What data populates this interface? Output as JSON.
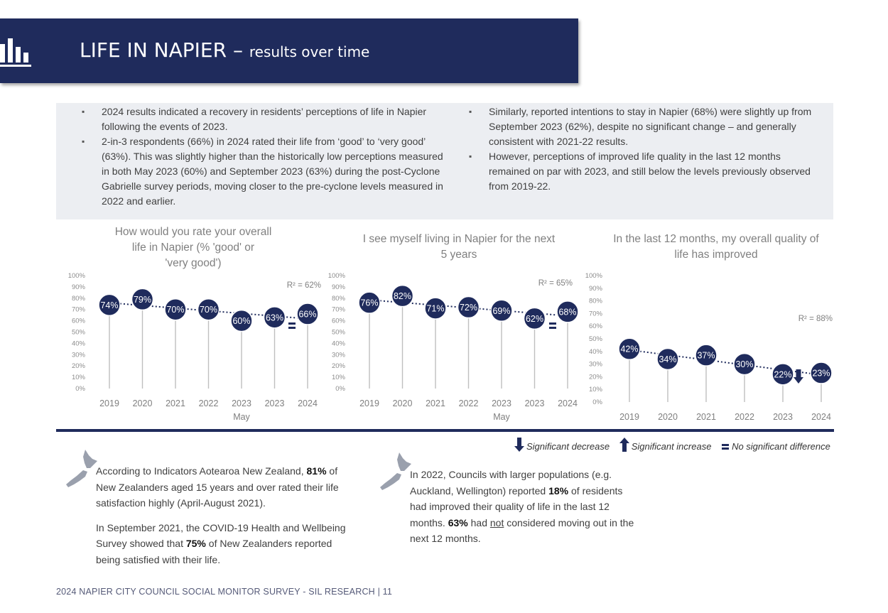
{
  "header": {
    "title": "LIFE IN NAPIER –",
    "subtitle": "results over time",
    "icon": "bar-chart-icon"
  },
  "summary": {
    "left": [
      "2024 results indicated a recovery in residents’ perceptions of life in Napier following the events of 2023.",
      "2-in-3 respondents (66%) in 2024 rated their life from ‘good’ to ‘very good’ (63%). This was slightly higher than the historically low perceptions measured in both May 2023 (60%) and September 2023 (63%) during the post-Cyclone Gabrielle survey periods, moving closer to the pre-cyclone levels measured in 2022 and earlier."
    ],
    "right": [
      "Similarly, reported intentions to stay in Napier (68%) were slightly up from September 2023 (62%), despite no significant change – and generally consistent with 2021-22 results.",
      "However, perceptions of improved life quality in the last 12 months remained on par with 2023, and still below the levels previously observed from 2019-22."
    ]
  },
  "chart_data": [
    {
      "type": "line",
      "title": "How would you rate your overall life in Napier (% 'good' or 'very good')",
      "categories": [
        "2019",
        "2020",
        "2021",
        "2022",
        "2023 May",
        "2023",
        "2024"
      ],
      "values": [
        74,
        79,
        70,
        70,
        60,
        63,
        66
      ],
      "ylim": [
        0,
        100
      ],
      "r2_label": "R² = 62%",
      "significance": "no significant difference",
      "yticks": [
        "100%",
        "90%",
        "80%",
        "70%",
        "60%",
        "50%",
        "40%",
        "30%",
        "20%",
        "10%",
        "0%"
      ]
    },
    {
      "type": "line",
      "title": "I see myself living in Napier for the next 5 years",
      "categories": [
        "2019",
        "2020",
        "2021",
        "2022",
        "2023 May",
        "2023",
        "2024"
      ],
      "values": [
        76,
        82,
        71,
        72,
        69,
        62,
        68
      ],
      "ylim": [
        0,
        100
      ],
      "r2_label": "R² = 65%",
      "significance": "no significant difference",
      "yticks": [
        "100%",
        "90%",
        "80%",
        "70%",
        "60%",
        "50%",
        "40%",
        "30%",
        "20%",
        "10%",
        "0%"
      ]
    },
    {
      "type": "line",
      "title": "In the last 12 months, my overall quality of life has improved",
      "categories": [
        "2019",
        "2020",
        "2021",
        "2022",
        "2023",
        "2024"
      ],
      "values": [
        42,
        34,
        37,
        30,
        22,
        23
      ],
      "ylim": [
        0,
        100
      ],
      "r2_label": "R² = 88%",
      "significance": "significant decrease",
      "yticks": [
        "100%",
        "90%",
        "80%",
        "70%",
        "60%",
        "50%",
        "40%",
        "30%",
        "20%",
        "10%",
        "0%"
      ]
    }
  ],
  "legend": {
    "decrease": "Significant decrease",
    "increase": "Significant increase",
    "nochange": "No significant difference"
  },
  "notes": {
    "left_1": {
      "pre": "According to Indicators Aotearoa New Zealand, ",
      "bold": "81%",
      "post": " of New Zealanders aged 15 years and over rated their life satisfaction highly (April-August 2021)."
    },
    "left_2": {
      "pre": "In September 2021, the COVID-19 Health and Wellbeing Survey showed that ",
      "bold": "75%",
      "post": " of New Zealanders reported being satisfied with their life."
    },
    "right": {
      "p1": "In 2022, Councils with larger populations (e.g. Auckland, Wellington) reported ",
      "b1": "18%",
      "p2": " of residents had improved their quality of life in the last 12 months. ",
      "b2": "63%",
      "p3": " had ",
      "u": "not",
      "p4": " considered moving out in the next 12 months."
    }
  },
  "colors": {
    "navy": "#1f2b5c",
    "gray_bg": "#eceef2",
    "stem": "#bfbfbf"
  },
  "footer": "2024 NAPIER CITY COUNCIL SOCIAL MONITOR SURVEY - SIL RESEARCH | 11"
}
